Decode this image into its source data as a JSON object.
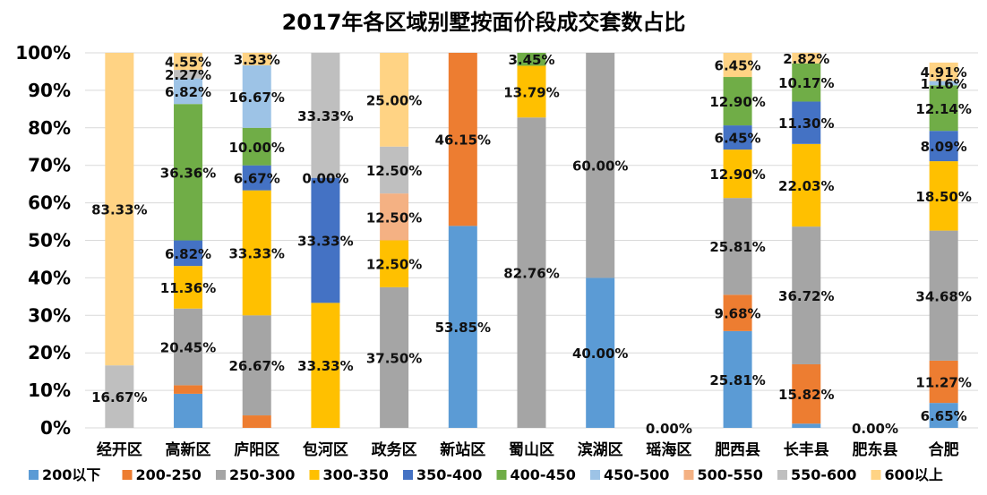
{
  "chart_data": {
    "type": "stacked-bar-100",
    "title": "2017年各区域别墅按面价段成交套数占比",
    "xlabel": "",
    "ylabel": "",
    "ylim": [
      0,
      100
    ],
    "y_ticks": [
      "0%",
      "10%",
      "20%",
      "30%",
      "40%",
      "50%",
      "60%",
      "70%",
      "80%",
      "90%",
      "100%"
    ],
    "categories": [
      "经开区",
      "高新区",
      "庐阳区",
      "包河区",
      "政务区",
      "新站区",
      "蜀山区",
      "滨湖区",
      "瑶海区",
      "肥西县",
      "长丰县",
      "肥东县",
      "合肥"
    ],
    "series": [
      {
        "name": "200以下",
        "color": "#5b9bd5",
        "values": [
          0,
          9.09,
          0,
          0,
          0,
          53.85,
          0,
          40.0,
          0,
          25.81,
          1.13,
          0,
          6.65
        ]
      },
      {
        "name": "200-250",
        "color": "#ed7d31",
        "values": [
          0,
          2.27,
          3.33,
          0,
          0,
          46.15,
          0,
          0,
          0,
          9.68,
          15.82,
          0,
          11.27
        ]
      },
      {
        "name": "250-300",
        "color": "#a5a5a5",
        "values": [
          0,
          20.45,
          26.67,
          0,
          37.5,
          0,
          82.76,
          60.0,
          0,
          25.81,
          36.72,
          0,
          34.68
        ]
      },
      {
        "name": "300-350",
        "color": "#ffc000",
        "values": [
          0,
          11.36,
          33.33,
          33.33,
          12.5,
          0,
          13.79,
          0,
          0,
          12.9,
          22.03,
          0,
          18.5
        ]
      },
      {
        "name": "350-400",
        "color": "#4472c4",
        "values": [
          0,
          6.82,
          6.67,
          33.33,
          0,
          0,
          0,
          0,
          0,
          6.45,
          11.3,
          0,
          8.09
        ]
      },
      {
        "name": "400-450",
        "color": "#70ad47",
        "values": [
          0,
          36.36,
          10.0,
          0.0,
          0,
          0,
          3.45,
          0,
          0,
          12.9,
          10.17,
          0,
          12.14
        ]
      },
      {
        "name": "450-500",
        "color": "#9dc3e6",
        "values": [
          0,
          6.82,
          16.67,
          0,
          0,
          0,
          0,
          0,
          0,
          0,
          0,
          0,
          1.16
        ]
      },
      {
        "name": "500-550",
        "color": "#f4b183",
        "values": [
          0,
          0,
          0,
          0,
          12.5,
          0,
          0,
          0,
          0,
          0,
          0,
          0,
          0
        ]
      },
      {
        "name": "550-600",
        "color": "#bfbfbf",
        "values": [
          16.67,
          2.27,
          0,
          33.33,
          12.5,
          0,
          0,
          0,
          0,
          0,
          0,
          0,
          0
        ]
      },
      {
        "name": "600以上",
        "color": "#ffd384",
        "values": [
          83.33,
          4.55,
          3.33,
          0,
          25.0,
          0,
          0,
          0,
          0,
          6.45,
          2.82,
          0,
          4.91
        ]
      }
    ],
    "data_labels": [
      [
        "",
        "",
        "",
        "",
        "",
        "",
        "",
        "",
        "16.67%",
        "83.33%"
      ],
      [
        "",
        "",
        "20.45%",
        "11.36%",
        "6.82%",
        "36.36%",
        "6.82%",
        "",
        "2.27%",
        "4.55%"
      ],
      [
        "",
        "",
        "26.67%",
        "33.33%",
        "6.67%",
        "10.00%",
        "16.67%",
        "",
        "",
        "3.33%"
      ],
      [
        "",
        "",
        "",
        "33.33%",
        "33.33%",
        "0.00%",
        "",
        "",
        "33.33%",
        ""
      ],
      [
        "",
        "",
        "37.50%",
        "12.50%",
        "",
        "",
        "",
        "12.50%",
        "12.50%",
        "25.00%"
      ],
      [
        "53.85%",
        "46.15%",
        "",
        "",
        "",
        "",
        "",
        "",
        "",
        ""
      ],
      [
        "",
        "",
        "82.76%",
        "13.79%",
        "",
        "3.45%",
        "",
        "",
        "",
        ""
      ],
      [
        "40.00%",
        "",
        "60.00%",
        "",
        "",
        "",
        "",
        "",
        "",
        ""
      ],
      [
        "",
        "",
        "",
        "",
        "",
        "",
        "",
        "",
        "",
        ""
      ],
      [
        "25.81%",
        "9.68%",
        "25.81%",
        "12.90%",
        "6.45%",
        "12.90%",
        "",
        "",
        "",
        "6.45%"
      ],
      [
        "",
        "15.82%",
        "36.72%",
        "22.03%",
        "11.30%",
        "10.17%",
        "",
        "",
        "",
        "2.82%"
      ],
      [
        "",
        "",
        "",
        "",
        "",
        "",
        "",
        "",
        "",
        ""
      ],
      [
        "6.65%",
        "11.27%",
        "34.68%",
        "18.50%",
        "8.09%",
        "12.14%",
        "1.16%",
        "",
        "",
        "4.91%"
      ]
    ],
    "empty_labels": [
      {
        "category_index": 8,
        "text": "0.00%"
      },
      {
        "category_index": 11,
        "text": "0.00%"
      }
    ],
    "legend_position": "bottom",
    "grid": true
  }
}
